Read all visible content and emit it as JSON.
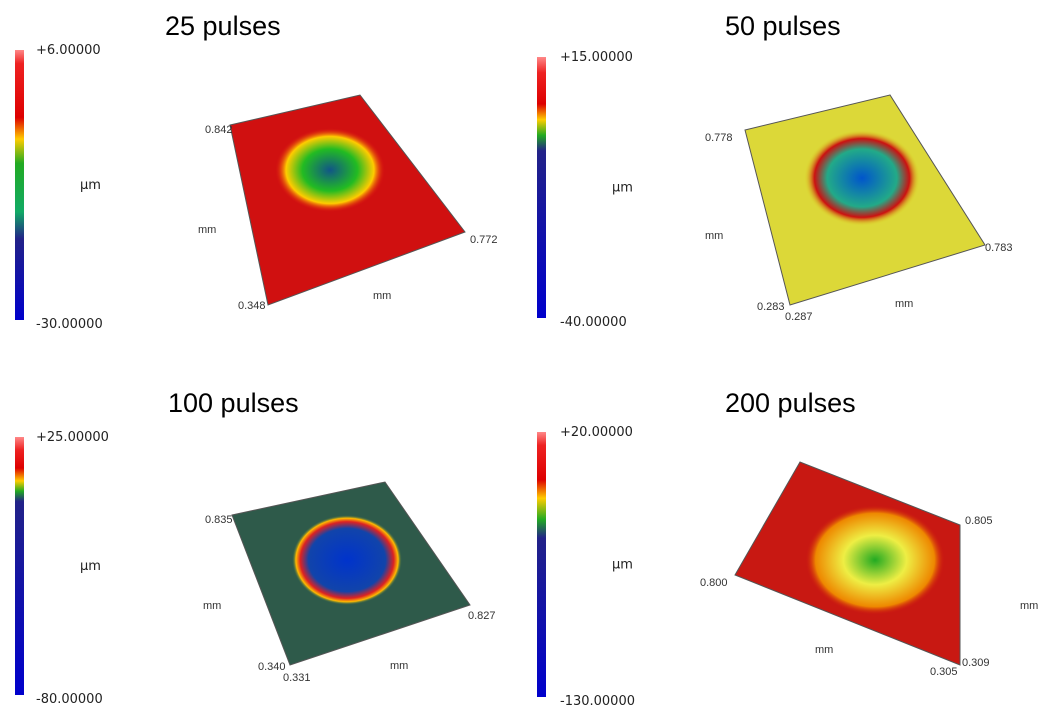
{
  "panels": [
    {
      "title": "25 pulses",
      "colorbar": {
        "max": "+6.00000",
        "unit": "µm",
        "min": "-30.00000"
      },
      "axis_labels": [
        "0.842",
        "0.772",
        "0.348",
        "mm",
        "mm"
      ]
    },
    {
      "title": "50 pulses",
      "colorbar": {
        "max": "+15.00000",
        "unit": "µm",
        "min": "-40.00000"
      },
      "axis_labels": [
        "0.778",
        "0.783",
        "0.283",
        "0.287",
        "mm",
        "mm"
      ]
    },
    {
      "title": "100 pulses",
      "colorbar": {
        "max": "+25.00000",
        "unit": "µm",
        "min": "-80.00000"
      },
      "axis_labels": [
        "0.835",
        "0.827",
        "0.340",
        "0.331",
        "mm",
        "mm"
      ]
    },
    {
      "title": "200 pulses",
      "colorbar": {
        "max": "+20.00000",
        "unit": "µm",
        "min": "-130.00000"
      },
      "axis_labels": [
        "0.805",
        "0.800",
        "0.305",
        "0.309",
        "mm",
        "mm"
      ]
    }
  ]
}
